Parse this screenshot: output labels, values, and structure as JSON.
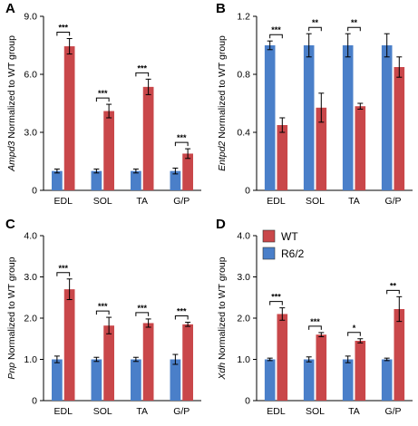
{
  "legend": {
    "items": [
      {
        "label": "WT",
        "color": "#c9474a"
      },
      {
        "label": "R6/2",
        "color": "#4a7fc9"
      }
    ]
  },
  "chart_data": [
    {
      "panel": "A",
      "type": "bar",
      "ylabel_gene": "Ampd3",
      "ylabel_rest": " Normalized to WT group",
      "categories": [
        "EDL",
        "SOL",
        "TA",
        "G/P"
      ],
      "ylim": [
        0,
        9.0
      ],
      "yticks": [
        "0",
        "3.0",
        "6.0",
        "9.0"
      ],
      "series": [
        {
          "values": [
            1.0,
            1.0,
            1.0,
            1.0
          ],
          "errors": [
            0.1,
            0.1,
            0.1,
            0.15
          ],
          "color": "#4a7fc9"
        },
        {
          "values": [
            7.45,
            4.1,
            5.35,
            1.9
          ],
          "errors": [
            0.4,
            0.35,
            0.4,
            0.25
          ],
          "color": "#c9474a"
        }
      ],
      "significance": [
        "***",
        "***",
        "***",
        "***"
      ]
    },
    {
      "panel": "B",
      "type": "bar",
      "ylabel_gene": "Entpd2",
      "ylabel_rest": " Normalized to WT group",
      "categories": [
        "EDL",
        "SOL",
        "TA",
        "G/P"
      ],
      "ylim": [
        0,
        1.2
      ],
      "yticks": [
        "0",
        "0.4",
        "0.8",
        "1.2"
      ],
      "series": [
        {
          "values": [
            1.0,
            1.0,
            1.0,
            1.0
          ],
          "errors": [
            0.03,
            0.08,
            0.08,
            0.08
          ],
          "color": "#4a7fc9"
        },
        {
          "values": [
            0.45,
            0.57,
            0.58,
            0.85
          ],
          "errors": [
            0.05,
            0.1,
            0.02,
            0.07
          ],
          "color": "#c9474a"
        }
      ],
      "significance": [
        "***",
        "**",
        "**",
        ""
      ]
    },
    {
      "panel": "C",
      "type": "bar",
      "ylabel_gene": "Pnp",
      "ylabel_rest": " Normalized to WT group",
      "categories": [
        "EDL",
        "SOL",
        "TA",
        "G/P"
      ],
      "ylim": [
        0,
        4.0
      ],
      "yticks": [
        "0",
        "1.0",
        "2.0",
        "3.0",
        "4.0"
      ],
      "series": [
        {
          "values": [
            1.0,
            1.0,
            1.0,
            1.0
          ],
          "errors": [
            0.08,
            0.05,
            0.05,
            0.12
          ],
          "color": "#4a7fc9"
        },
        {
          "values": [
            2.7,
            1.82,
            1.88,
            1.85
          ],
          "errors": [
            0.25,
            0.2,
            0.1,
            0.05
          ],
          "color": "#c9474a"
        }
      ],
      "significance": [
        "***",
        "***",
        "***",
        "***"
      ]
    },
    {
      "panel": "D",
      "type": "bar",
      "ylabel_gene": "Xdh",
      "ylabel_rest": " Normalized to WT group",
      "categories": [
        "EDL",
        "SOL",
        "TA",
        "G/P"
      ],
      "ylim": [
        0,
        4.0
      ],
      "yticks": [
        "0",
        "1.0",
        "2.0",
        "3.0",
        "4.0"
      ],
      "series": [
        {
          "values": [
            1.0,
            1.0,
            1.0,
            1.0
          ],
          "errors": [
            0.03,
            0.06,
            0.08,
            0.03
          ],
          "color": "#4a7fc9"
        },
        {
          "values": [
            2.1,
            1.6,
            1.45,
            2.22
          ],
          "errors": [
            0.15,
            0.05,
            0.05,
            0.3
          ],
          "color": "#c9474a"
        }
      ],
      "significance": [
        "***",
        "***",
        "*",
        "**"
      ]
    }
  ]
}
